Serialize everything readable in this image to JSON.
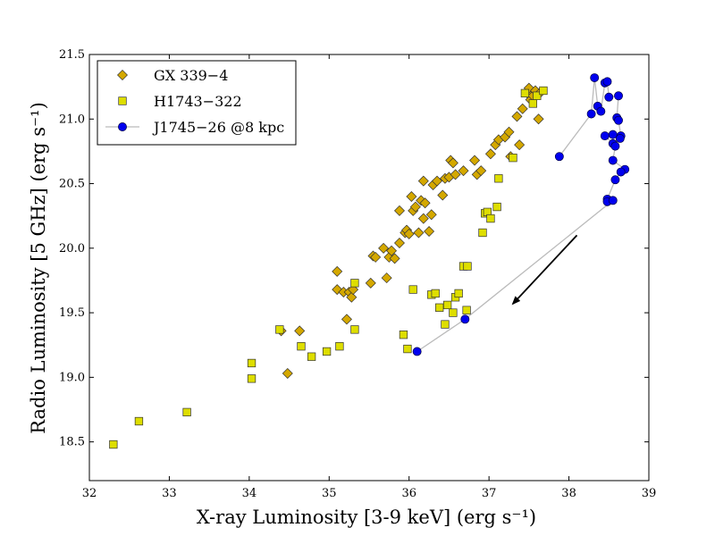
{
  "chart_data": {
    "type": "scatter",
    "title": "",
    "xlabel": "X-ray Luminosity [3-9 keV] (erg s⁻¹)",
    "ylabel": "Radio Luminosity [5 GHz] (erg s⁻¹)",
    "xlim": [
      32,
      39
    ],
    "ylim": [
      18.2,
      21.5
    ],
    "xticks": [
      32,
      33,
      34,
      35,
      36,
      37,
      38,
      39
    ],
    "xtick_labels": [
      "32",
      "33",
      "34",
      "35",
      "36",
      "37",
      "38",
      "39"
    ],
    "yticks": [
      18.5,
      19.0,
      19.5,
      20.0,
      20.5,
      21.0,
      21.5
    ],
    "ytick_labels": [
      "18.5",
      "19.0",
      "19.5",
      "20.0",
      "20.5",
      "21.0",
      "21.5"
    ],
    "legend_position": "top-left",
    "arrow": {
      "from": [
        38.1,
        20.1
      ],
      "to": [
        37.3,
        19.57
      ]
    },
    "series": [
      {
        "name": "GX 339−4",
        "marker": "diamond",
        "color": "#d4a800",
        "edge": "#333333",
        "points": [
          [
            34.4,
            19.36
          ],
          [
            34.48,
            19.03
          ],
          [
            34.63,
            19.36
          ],
          [
            35.1,
            19.82
          ],
          [
            35.1,
            19.68
          ],
          [
            35.18,
            19.66
          ],
          [
            35.22,
            19.45
          ],
          [
            35.25,
            19.66
          ],
          [
            35.28,
            19.62
          ],
          [
            35.3,
            19.68
          ],
          [
            35.52,
            19.73
          ],
          [
            35.55,
            19.94
          ],
          [
            35.58,
            19.93
          ],
          [
            35.68,
            20.0
          ],
          [
            35.72,
            19.77
          ],
          [
            35.75,
            19.93
          ],
          [
            35.78,
            19.98
          ],
          [
            35.82,
            19.92
          ],
          [
            35.88,
            20.04
          ],
          [
            35.88,
            20.29
          ],
          [
            35.95,
            20.12
          ],
          [
            35.97,
            20.14
          ],
          [
            36.0,
            20.11
          ],
          [
            36.03,
            20.4
          ],
          [
            36.05,
            20.29
          ],
          [
            36.08,
            20.32
          ],
          [
            36.12,
            20.12
          ],
          [
            36.15,
            20.37
          ],
          [
            36.18,
            20.23
          ],
          [
            36.2,
            20.35
          ],
          [
            36.18,
            20.52
          ],
          [
            36.25,
            20.13
          ],
          [
            36.28,
            20.26
          ],
          [
            36.3,
            20.49
          ],
          [
            36.35,
            20.52
          ],
          [
            36.42,
            20.41
          ],
          [
            36.45,
            20.54
          ],
          [
            36.5,
            20.55
          ],
          [
            36.52,
            20.68
          ],
          [
            36.55,
            20.66
          ],
          [
            36.58,
            20.57
          ],
          [
            36.68,
            20.6
          ],
          [
            36.82,
            20.68
          ],
          [
            36.85,
            20.57
          ],
          [
            36.9,
            20.6
          ],
          [
            37.02,
            20.73
          ],
          [
            37.08,
            20.8
          ],
          [
            37.12,
            20.84
          ],
          [
            37.2,
            20.86
          ],
          [
            37.25,
            20.9
          ],
          [
            37.27,
            20.71
          ],
          [
            37.35,
            21.02
          ],
          [
            37.38,
            20.8
          ],
          [
            37.42,
            21.08
          ],
          [
            37.48,
            21.2
          ],
          [
            37.5,
            21.24
          ],
          [
            37.52,
            21.15
          ],
          [
            37.55,
            21.18
          ],
          [
            37.58,
            21.22
          ],
          [
            37.62,
            21.0
          ],
          [
            37.65,
            21.21
          ]
        ]
      },
      {
        "name": "H1743−322",
        "marker": "square",
        "color": "#dede00",
        "edge": "#333333",
        "points": [
          [
            32.3,
            18.48
          ],
          [
            32.62,
            18.66
          ],
          [
            33.22,
            18.73
          ],
          [
            34.03,
            19.11
          ],
          [
            34.03,
            18.99
          ],
          [
            34.38,
            19.37
          ],
          [
            34.65,
            19.24
          ],
          [
            34.78,
            19.16
          ],
          [
            34.97,
            19.2
          ],
          [
            35.13,
            19.24
          ],
          [
            35.32,
            19.37
          ],
          [
            35.32,
            19.73
          ],
          [
            35.93,
            19.33
          ],
          [
            35.98,
            19.22
          ],
          [
            36.05,
            19.68
          ],
          [
            36.28,
            19.64
          ],
          [
            36.33,
            19.65
          ],
          [
            36.38,
            19.54
          ],
          [
            36.45,
            19.41
          ],
          [
            36.48,
            19.56
          ],
          [
            36.55,
            19.5
          ],
          [
            36.58,
            19.62
          ],
          [
            36.62,
            19.65
          ],
          [
            36.68,
            19.86
          ],
          [
            36.73,
            19.86
          ],
          [
            36.72,
            19.52
          ],
          [
            36.92,
            20.12
          ],
          [
            36.95,
            20.27
          ],
          [
            36.98,
            20.28
          ],
          [
            37.02,
            20.23
          ],
          [
            37.1,
            20.32
          ],
          [
            37.12,
            20.54
          ],
          [
            37.3,
            20.7
          ],
          [
            37.45,
            21.2
          ],
          [
            37.55,
            21.12
          ],
          [
            37.6,
            21.18
          ],
          [
            37.68,
            21.22
          ]
        ]
      },
      {
        "name": "J1745−26 @8 kpc",
        "marker": "circle",
        "color": "#0000ee",
        "edge": "#000044",
        "line_color": "#bbbbbb",
        "points": [
          [
            37.88,
            20.71
          ],
          [
            38.28,
            21.04
          ],
          [
            38.32,
            21.32
          ],
          [
            38.36,
            21.1
          ],
          [
            38.4,
            21.06
          ],
          [
            38.45,
            21.28
          ],
          [
            38.48,
            21.29
          ],
          [
            38.5,
            21.17
          ],
          [
            38.62,
            21.18
          ],
          [
            38.6,
            21.01
          ],
          [
            38.62,
            20.99
          ],
          [
            38.65,
            20.87
          ],
          [
            38.64,
            20.85
          ],
          [
            38.55,
            20.88
          ],
          [
            38.45,
            20.87
          ],
          [
            38.55,
            20.81
          ],
          [
            38.58,
            20.79
          ],
          [
            38.55,
            20.68
          ],
          [
            38.7,
            20.61
          ],
          [
            38.65,
            20.59
          ],
          [
            38.58,
            20.53
          ],
          [
            38.48,
            20.38
          ],
          [
            38.48,
            20.36
          ],
          [
            38.55,
            20.37
          ],
          [
            36.7,
            19.45
          ],
          [
            36.1,
            19.2
          ]
        ]
      }
    ]
  }
}
